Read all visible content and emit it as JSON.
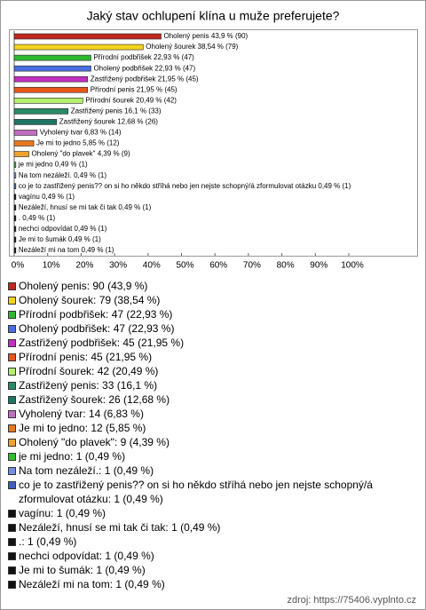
{
  "chart_data": {
    "type": "bar",
    "orientation": "horizontal",
    "title": "Jaký stav ochlupení klína u muže preferujete?",
    "values": [
      43.9,
      38.54,
      22.93,
      22.93,
      21.95,
      21.95,
      20.49,
      16.1,
      12.68,
      6.83,
      5.85,
      4.39,
      0.49,
      0.49,
      0.49,
      0.49,
      0.49,
      0.49,
      0.49,
      0.49,
      0.49
    ],
    "value_labels": [
      "Oholený penis 43,9 % (90)",
      "Oholený šourek 38,54 % (79)",
      "Přírodní podbřišek 22,93 % (47)",
      "Oholený podbřišek 22,93 % (47)",
      "Zastřižený podbřišek 21,95 % (45)",
      "Přírodní penis 21,95 % (45)",
      "Přírodní šourek 20,49 % (42)",
      "Zastřižený penis 16,1 % (33)",
      "Zastřižený šourek 12,68 % (26)",
      "Vyholený tvar 6,83 % (14)",
      "Je mi to jedno 5,85 % (12)",
      "Oholený \"do plavek\" 4,39 % (9)",
      "je mi jedno 0,49 % (1)",
      "Na tom nezáleží. 0,49 % (1)",
      "co je to zastřižený penis?? on si ho někdo stříhá nebo jen nejste schopný/á zformulovat otázku 0,49 % (1)",
      "vagínu 0,49 % (1)",
      "Nezáleží, hnusí se mi tak či tak 0,49 % (1)",
      ". 0,49 % (1)",
      "nechci odpovídat 0,49 % (1)",
      "Je mi to šumák 0,49 % (1)",
      "Nezáleží mi na tom 0,49 % (1)"
    ],
    "legend_labels": [
      "Oholený penis: 90 (43,9 %)",
      "Oholený šourek: 79 (38,54 %)",
      "Přírodní podbřišek: 47 (22,93 %)",
      "Oholený podbřišek: 47 (22,93 %)",
      "Zastřižený podbřišek: 45 (21,95 %)",
      "Přírodní penis: 45 (21,95 %)",
      "Přírodní šourek: 42 (20,49 %)",
      "Zastřižený penis: 33 (16,1 %)",
      "Zastřižený šourek: 26 (12,68 %)",
      "Vyholený tvar: 14 (6,83 %)",
      "Je mi to jedno: 12 (5,85 %)",
      "Oholený \"do plavek\": 9 (4,39 %)",
      "je mi jedno: 1 (0,49 %)",
      "Na tom nezáleží.: 1 (0,49 %)",
      "co je to zastřižený penis?? on si ho někdo stříhá nebo jen nejste schopný/á zformulovat otázku: 1 (0,49 %)",
      "vagínu: 1 (0,49 %)",
      "Nezáleží, hnusí se mi tak či tak: 1 (0,49 %)",
      ".: 1 (0,49 %)",
      "nechci odpovídat: 1 (0,49 %)",
      "Je mi to šumák: 1 (0,49 %)",
      "Nezáleží mi na tom: 1 (0,49 %)"
    ],
    "colors": [
      "#c0281e",
      "#f3d21c",
      "#2fb82f",
      "#4a6ee0",
      "#c02fc0",
      "#e8561a",
      "#b6ee6e",
      "#2a8a66",
      "#1f7565",
      "#c06ec0",
      "#e8781e",
      "#f0a22e",
      "#2ec02e",
      "#7090e0",
      "#4060c0",
      "#111111",
      "#111111",
      "#111111",
      "#111111",
      "#111111",
      "#111111"
    ],
    "xlim": [
      0,
      100
    ],
    "xticks": [
      {
        "value": 0,
        "label": "0%"
      },
      {
        "value": 10,
        "label": "10%"
      },
      {
        "value": 20,
        "label": "20%"
      },
      {
        "value": 30,
        "label": "30%"
      },
      {
        "value": 40,
        "label": "40%"
      },
      {
        "value": 50,
        "label": "50%"
      },
      {
        "value": 60,
        "label": "60%"
      },
      {
        "value": 70,
        "label": "70%"
      },
      {
        "value": 80,
        "label": "80%"
      },
      {
        "value": 90,
        "label": "90%"
      },
      {
        "value": 100,
        "label": "100%"
      }
    ],
    "source": "zdroj: https://75406.vyplnto.cz"
  }
}
